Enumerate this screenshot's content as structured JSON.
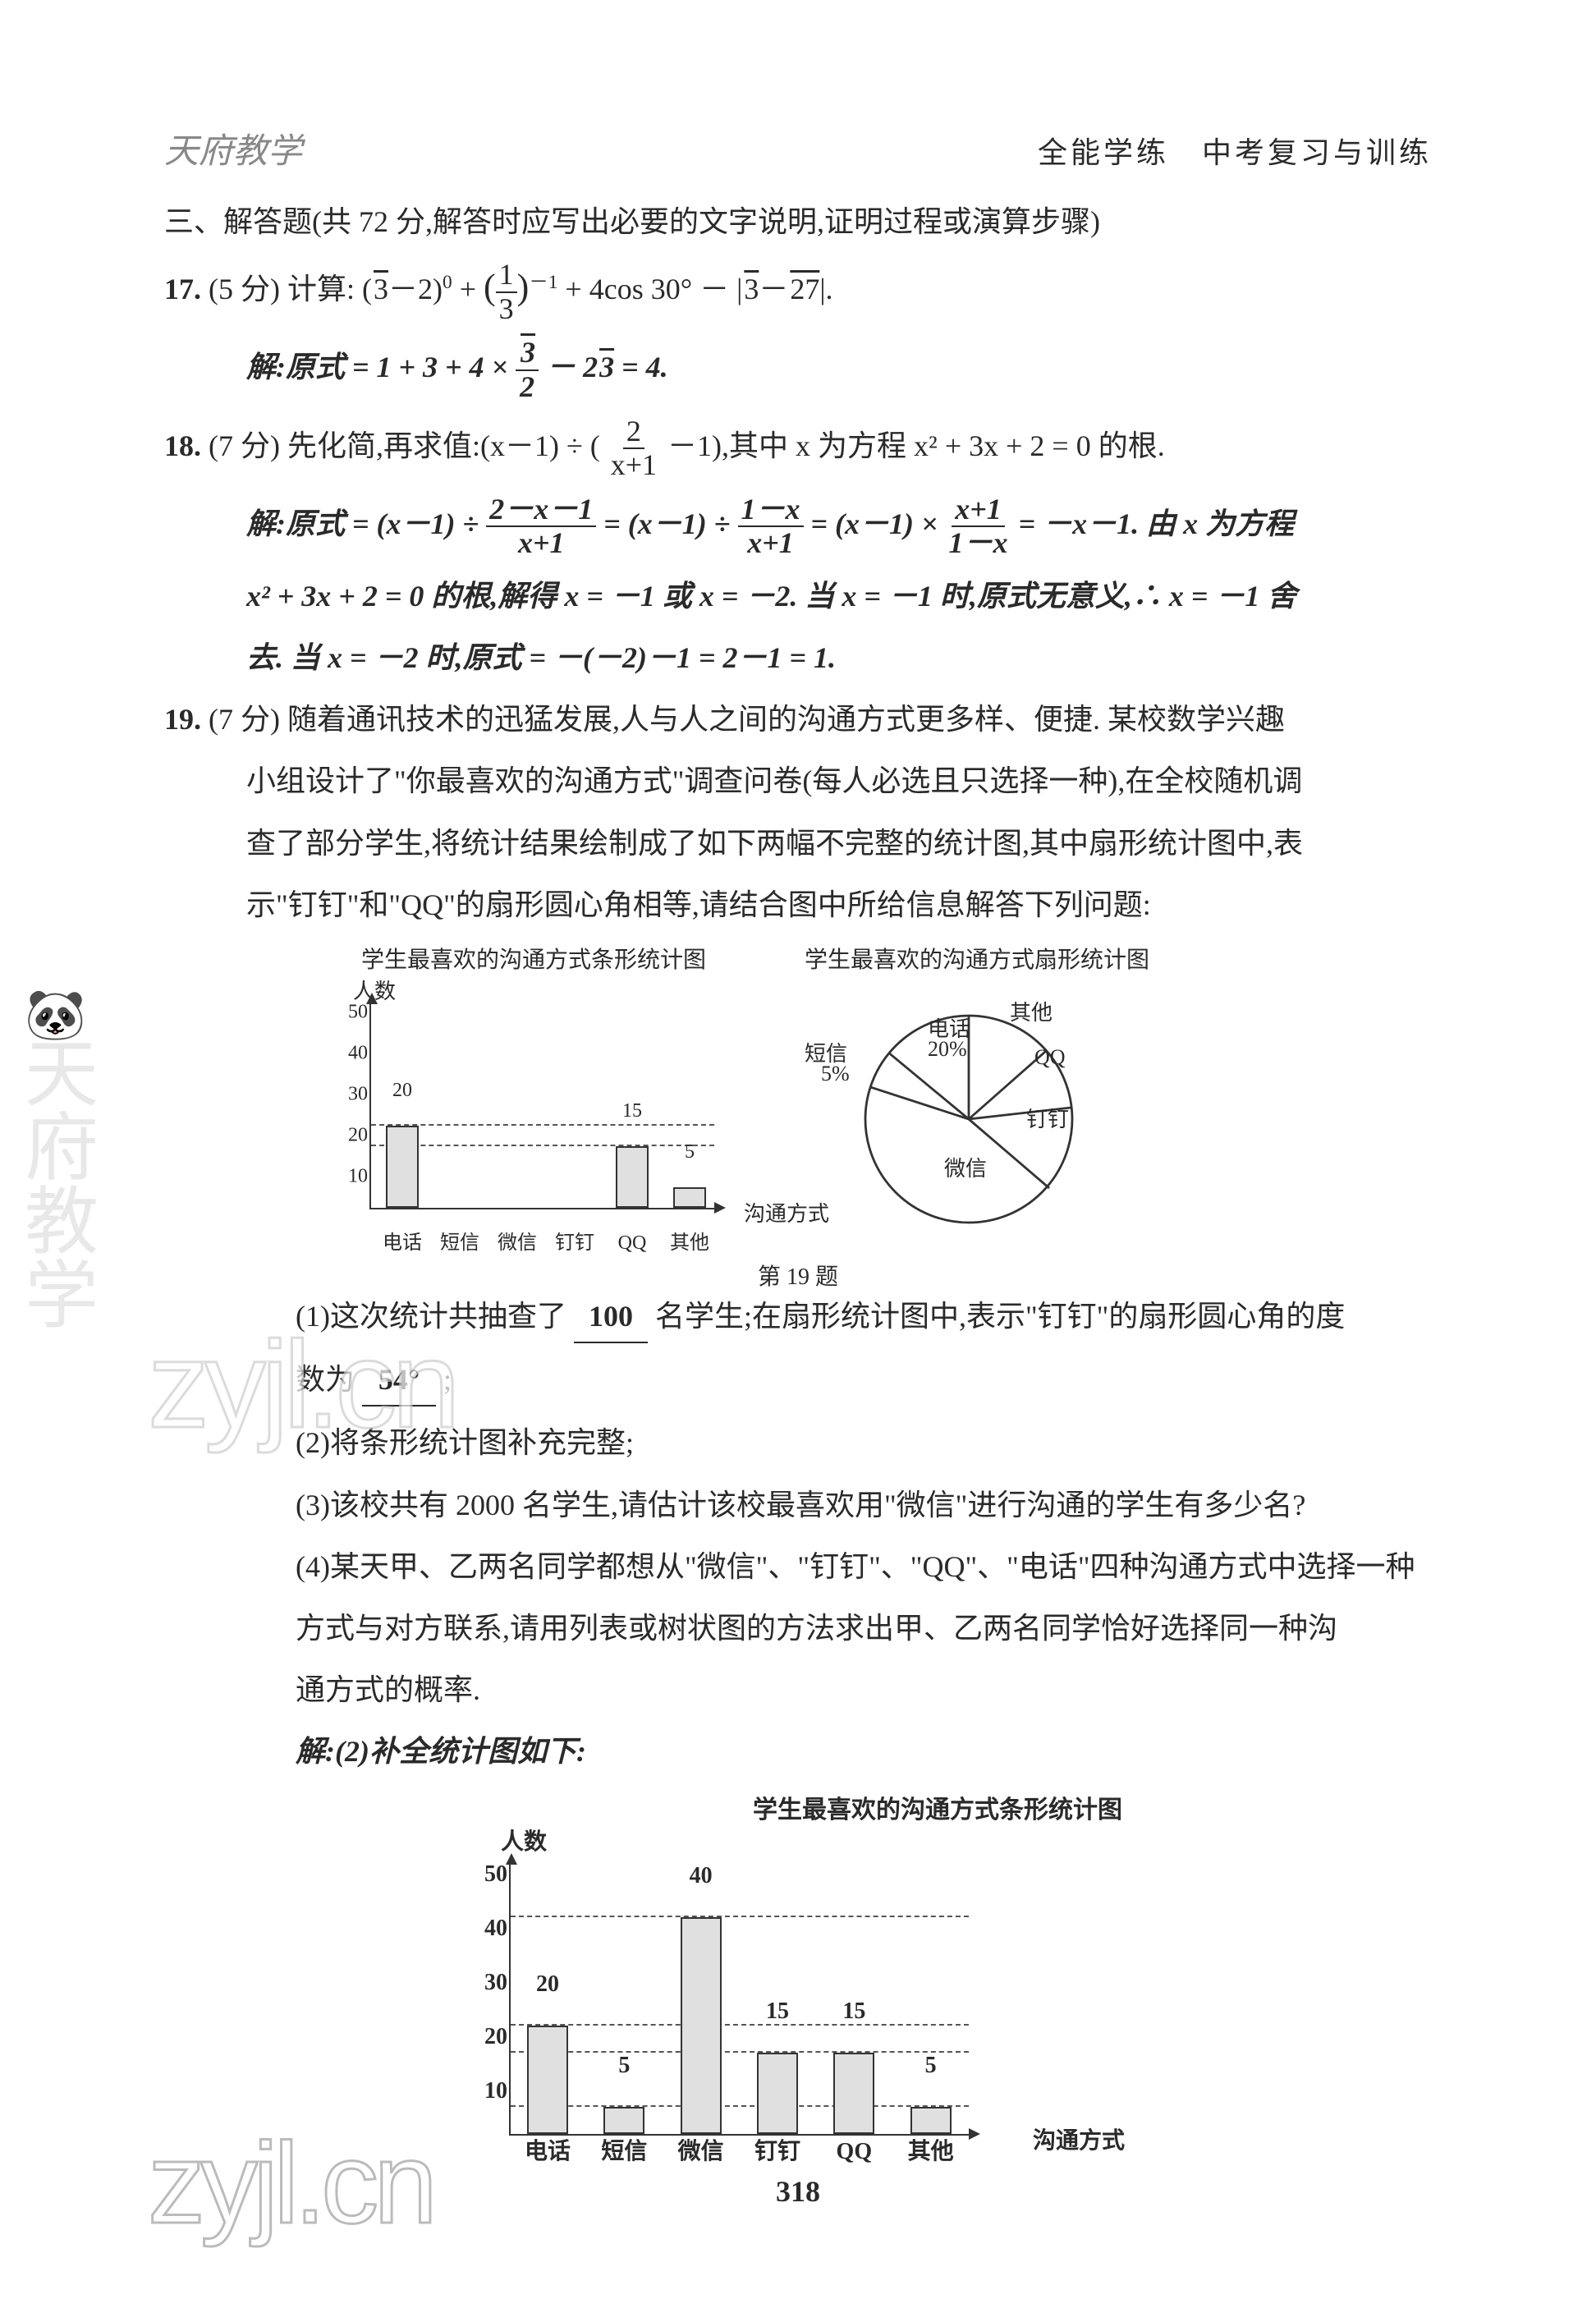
{
  "header": {
    "brand": "天府教学",
    "title": "全能学练　中考复习与训练"
  },
  "section3": {
    "heading": "三、解答题(共 72 分,解答时应写出必要的文字说明,证明过程或演算步骤)"
  },
  "q17": {
    "num": "17.",
    "points": "(5 分)",
    "stem_prefix": "计算:",
    "sol_label": "解:原式",
    "sol_rest": "= 4."
  },
  "q18": {
    "num": "18.",
    "points": "(7 分)",
    "stem_a": "先化简,再求值:(x－1) ÷ (",
    "stem_b": "－1),其中 x 为方程 x² + 3x + 2 = 0 的根.",
    "sol_label": "解:原式 = (x－1) ÷",
    "sol_mid1": "= (x－1) ÷",
    "sol_mid2": "= (x－1) ×",
    "sol_tail": "= －x－1. 由 x 为方程",
    "sol_line2": "x² + 3x + 2 = 0 的根,解得 x = －1 或 x = －2. 当 x = －1 时,原式无意义,∴ x = －1 舍",
    "sol_line3": "去. 当 x = －2 时,原式 = －(－2)－1 = 2－1 = 1."
  },
  "q19": {
    "num": "19.",
    "points": "(7 分)",
    "stem1": "随着通讯技术的迅猛发展,人与人之间的沟通方式更多样、便捷. 某校数学兴趣",
    "stem2": "小组设计了\"你最喜欢的沟通方式\"调查问卷(每人必选且只选择一种),在全校随机调",
    "stem3": "查了部分学生,将统计结果绘制成了如下两幅不完整的统计图,其中扇形统计图中,表",
    "stem4": "示\"钉钉\"和\"QQ\"的扇形圆心角相等,请结合图中所给信息解答下列问题:",
    "bar_sm": {
      "title": "学生最喜欢的沟通方式条形统计图",
      "y_label": "人数",
      "x_label": "沟通方式",
      "ylim": 50,
      "y_ticks": [
        10,
        20,
        30,
        40,
        50
      ],
      "grid_lines": [
        15,
        20
      ],
      "categories": [
        "电话",
        "短信",
        "微信",
        "钉钉",
        "QQ",
        "其他"
      ],
      "values": [
        20,
        null,
        null,
        null,
        15,
        5
      ],
      "bar_labels": {
        "0": "20",
        "4": "15",
        "5": "5"
      },
      "bar_fill": "#e0e0e0",
      "bar_border": "#333333",
      "grid_color": "#555555"
    },
    "pie": {
      "title": "学生最喜欢的沟通方式扇形统计图",
      "labels": {
        "duanxin": "短信",
        "duanxin_pct": "5%",
        "dianhua": "电话",
        "dianhua_pct": "20%",
        "qita": "其他",
        "qq": "QQ",
        "dingding": "钉钉",
        "weixin": "微信"
      }
    },
    "fig_caption": "第 19 题",
    "sub1_a": "(1)这次统计共抽查了",
    "sub1_ans1": "100",
    "sub1_b": "名学生;在扇形统计图中,表示\"钉钉\"的扇形圆心角的度",
    "sub1_c": "数为",
    "sub1_ans2": "54°",
    "sub1_d": ";",
    "sub2": "(2)将条形统计图补充完整;",
    "sub3": "(3)该校共有 2000 名学生,请估计该校最喜欢用\"微信\"进行沟通的学生有多少名?",
    "sub4a": "(4)某天甲、乙两名同学都想从\"微信\"、\"钉钉\"、\"QQ\"、\"电话\"四种沟通方式中选择一种",
    "sub4b": "方式与对方联系,请用列表或树状图的方法求出甲、乙两名同学恰好选择同一种沟",
    "sub4c": "通方式的概率.",
    "sol2_label": "解:(2)补全统计图如下:",
    "bar_lg": {
      "title": "学生最喜欢的沟通方式条形统计图",
      "y_label": "人数",
      "x_label": "沟通方式",
      "ylim": 50,
      "y_ticks": [
        10,
        20,
        30,
        40,
        50
      ],
      "grid_lines": [
        5,
        15,
        20,
        40
      ],
      "categories": [
        "电话",
        "短信",
        "微信",
        "钉钉",
        "QQ",
        "其他"
      ],
      "values": [
        20,
        5,
        40,
        15,
        15,
        5
      ],
      "bar_fill": "#e0e0e0",
      "bar_border": "#333333"
    }
  },
  "pagenum": "318",
  "watermarks": {
    "side": "天府教学",
    "bottom": "zyjl.cn",
    "mid": "zyjl.cn"
  }
}
